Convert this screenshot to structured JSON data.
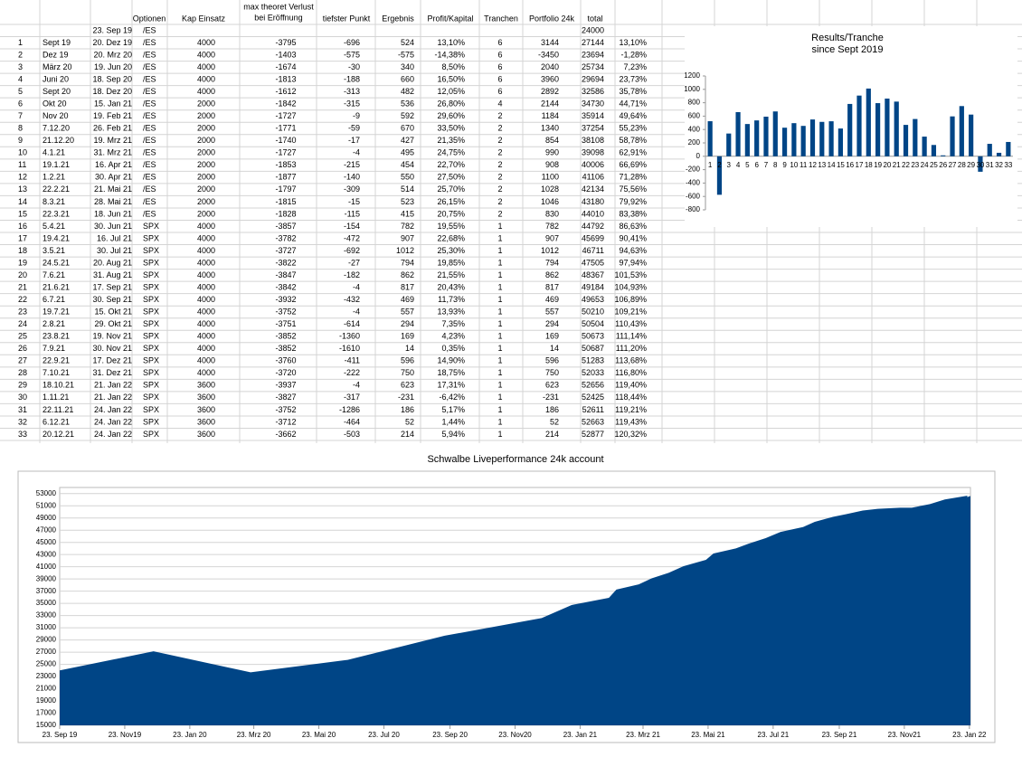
{
  "table": {
    "header": [
      "Optionen",
      "Kap Einsatz",
      [
        "max theoret Verlust",
        "bei Eröffnung"
      ],
      "tiefster Punkt",
      "Ergebnis",
      "Profit/Kapital",
      "Tranchen",
      "Portfolio 24k",
      "total"
    ],
    "start": {
      "end": "23. Sep 19",
      "option": "/ES",
      "total": "24000"
    },
    "rows": [
      [
        "1",
        "Sept 19",
        "20. Dez 19",
        "/ES",
        "4000",
        "-3795",
        "-696",
        "524",
        "13,10%",
        "6",
        "3144",
        "27144",
        "13,10%"
      ],
      [
        "2",
        "Dez 19",
        "20. Mrz 20",
        "/ES",
        "4000",
        "-1403",
        "-575",
        "-575",
        "-14,38%",
        "6",
        "-3450",
        "23694",
        "-1,28%"
      ],
      [
        "3",
        "März 20",
        "19. Jun 20",
        "/ES",
        "4000",
        "-1674",
        "-30",
        "340",
        "8,50%",
        "6",
        "2040",
        "25734",
        "7,23%"
      ],
      [
        "4",
        "Juni 20",
        "18. Sep 20",
        "/ES",
        "4000",
        "-1813",
        "-188",
        "660",
        "16,50%",
        "6",
        "3960",
        "29694",
        "23,73%"
      ],
      [
        "5",
        "Sept 20",
        "18. Dez 20",
        "/ES",
        "4000",
        "-1612",
        "-313",
        "482",
        "12,05%",
        "6",
        "2892",
        "32586",
        "35,78%"
      ],
      [
        "6",
        "Okt 20",
        "15. Jan 21",
        "/ES",
        "2000",
        "-1842",
        "-315",
        "536",
        "26,80%",
        "4",
        "2144",
        "34730",
        "44,71%"
      ],
      [
        "7",
        "Nov 20",
        "19. Feb 21",
        "/ES",
        "2000",
        "-1727",
        "-9",
        "592",
        "29,60%",
        "2",
        "1184",
        "35914",
        "49,64%"
      ],
      [
        "8",
        "7.12.20",
        "26. Feb 21",
        "/ES",
        "2000",
        "-1771",
        "-59",
        "670",
        "33,50%",
        "2",
        "1340",
        "37254",
        "55,23%"
      ],
      [
        "9",
        "21.12.20",
        "19. Mrz 21",
        "/ES",
        "2000",
        "-1740",
        "-17",
        "427",
        "21,35%",
        "2",
        "854",
        "38108",
        "58,78%"
      ],
      [
        "10",
        "4.1.21",
        "31. Mrz 21",
        "/ES",
        "2000",
        "-1727",
        "-4",
        "495",
        "24,75%",
        "2",
        "990",
        "39098",
        "62,91%"
      ],
      [
        "11",
        "19.1.21",
        "16. Apr 21",
        "/ES",
        "2000",
        "-1853",
        "-215",
        "454",
        "22,70%",
        "2",
        "908",
        "40006",
        "66,69%"
      ],
      [
        "12",
        "1.2.21",
        "30. Apr 21",
        "/ES",
        "2000",
        "-1877",
        "-140",
        "550",
        "27,50%",
        "2",
        "1100",
        "41106",
        "71,28%"
      ],
      [
        "13",
        "22.2.21",
        "21. Mai 21",
        "/ES",
        "2000",
        "-1797",
        "-309",
        "514",
        "25,70%",
        "2",
        "1028",
        "42134",
        "75,56%"
      ],
      [
        "14",
        "8.3.21",
        "28. Mai 21",
        "/ES",
        "2000",
        "-1815",
        "-15",
        "523",
        "26,15%",
        "2",
        "1046",
        "43180",
        "79,92%"
      ],
      [
        "15",
        "22.3.21",
        "18. Jun 21",
        "/ES",
        "2000",
        "-1828",
        "-115",
        "415",
        "20,75%",
        "2",
        "830",
        "44010",
        "83,38%"
      ],
      [
        "16",
        "5.4.21",
        "30. Jun 21",
        "SPX",
        "4000",
        "-3857",
        "-154",
        "782",
        "19,55%",
        "1",
        "782",
        "44792",
        "86,63%"
      ],
      [
        "17",
        "19.4.21",
        "16. Jul 21",
        "SPX",
        "4000",
        "-3782",
        "-472",
        "907",
        "22,68%",
        "1",
        "907",
        "45699",
        "90,41%"
      ],
      [
        "18",
        "3.5.21",
        "30. Jul 21",
        "SPX",
        "4000",
        "-3727",
        "-692",
        "1012",
        "25,30%",
        "1",
        "1012",
        "46711",
        "94,63%"
      ],
      [
        "19",
        "24.5.21",
        "20. Aug 21",
        "SPX",
        "4000",
        "-3822",
        "-27",
        "794",
        "19,85%",
        "1",
        "794",
        "47505",
        "97,94%"
      ],
      [
        "20",
        "7.6.21",
        "31. Aug 21",
        "SPX",
        "4000",
        "-3847",
        "-182",
        "862",
        "21,55%",
        "1",
        "862",
        "48367",
        "101,53%"
      ],
      [
        "21",
        "21.6.21",
        "17. Sep 21",
        "SPX",
        "4000",
        "-3842",
        "-4",
        "817",
        "20,43%",
        "1",
        "817",
        "49184",
        "104,93%"
      ],
      [
        "22",
        "6.7.21",
        "30. Sep 21",
        "SPX",
        "4000",
        "-3932",
        "-432",
        "469",
        "11,73%",
        "1",
        "469",
        "49653",
        "106,89%"
      ],
      [
        "23",
        "19.7.21",
        "15. Okt 21",
        "SPX",
        "4000",
        "-3752",
        "-4",
        "557",
        "13,93%",
        "1",
        "557",
        "50210",
        "109,21%"
      ],
      [
        "24",
        "2.8.21",
        "29. Okt 21",
        "SPX",
        "4000",
        "-3751",
        "-614",
        "294",
        "7,35%",
        "1",
        "294",
        "50504",
        "110,43%"
      ],
      [
        "25",
        "23.8.21",
        "19. Nov 21",
        "SPX",
        "4000",
        "-3852",
        "-1360",
        "169",
        "4,23%",
        "1",
        "169",
        "50673",
        "111,14%"
      ],
      [
        "26",
        "7.9.21",
        "30. Nov 21",
        "SPX",
        "4000",
        "-3852",
        "-1610",
        "14",
        "0,35%",
        "1",
        "14",
        "50687",
        "111,20%"
      ],
      [
        "27",
        "22.9.21",
        "17. Dez 21",
        "SPX",
        "4000",
        "-3760",
        "-411",
        "596",
        "14,90%",
        "1",
        "596",
        "51283",
        "113,68%"
      ],
      [
        "28",
        "7.10.21",
        "31. Dez 21",
        "SPX",
        "4000",
        "-3720",
        "-222",
        "750",
        "18,75%",
        "1",
        "750",
        "52033",
        "116,80%"
      ],
      [
        "29",
        "18.10.21",
        "21. Jan 22",
        "SPX",
        "3600",
        "-3937",
        "-4",
        "623",
        "17,31%",
        "1",
        "623",
        "52656",
        "119,40%"
      ],
      [
        "30",
        "1.11.21",
        "21. Jan 22",
        "SPX",
        "3600",
        "-3827",
        "-317",
        "-231",
        "-6,42%",
        "1",
        "-231",
        "52425",
        "118,44%"
      ],
      [
        "31",
        "22.11.21",
        "24. Jan 22",
        "SPX",
        "3600",
        "-3752",
        "-1286",
        "186",
        "5,17%",
        "1",
        "186",
        "52611",
        "119,21%"
      ],
      [
        "32",
        "6.12.21",
        "24. Jan 22",
        "SPX",
        "3600",
        "-3712",
        "-464",
        "52",
        "1,44%",
        "1",
        "52",
        "52663",
        "119,43%"
      ],
      [
        "33",
        "20.12.21",
        "24. Jan 22",
        "SPX",
        "3600",
        "-3662",
        "-503",
        "214",
        "5,94%",
        "1",
        "214",
        "52877",
        "120,32%"
      ]
    ]
  },
  "chart_data": [
    {
      "type": "bar",
      "title": [
        "Results/Tranche",
        "since Sept 2019"
      ],
      "color": "#004586",
      "categories": [
        1,
        2,
        3,
        4,
        5,
        6,
        7,
        8,
        9,
        10,
        11,
        12,
        13,
        14,
        15,
        16,
        17,
        18,
        19,
        20,
        21,
        22,
        23,
        24,
        25,
        26,
        27,
        28,
        29,
        30,
        31,
        32,
        33
      ],
      "values": [
        524,
        -575,
        340,
        660,
        482,
        536,
        592,
        670,
        427,
        495,
        454,
        550,
        514,
        523,
        415,
        782,
        907,
        1012,
        794,
        862,
        817,
        469,
        557,
        294,
        169,
        14,
        596,
        750,
        623,
        -231,
        186,
        52,
        214
      ],
      "ylim": [
        -800,
        1200
      ],
      "yticks": [
        -800,
        -600,
        -400,
        -200,
        0,
        200,
        400,
        600,
        800,
        1000,
        1200
      ],
      "grid": false
    },
    {
      "type": "area",
      "title": "Schwalbe Liveperformance 24k account",
      "color": "#004586",
      "grid": true,
      "x": [
        "2019-09-23",
        "2019-12-20",
        "2020-03-20",
        "2020-06-19",
        "2020-09-18",
        "2020-12-18",
        "2021-01-15",
        "2021-02-19",
        "2021-02-26",
        "2021-03-19",
        "2021-03-31",
        "2021-04-16",
        "2021-04-30",
        "2021-05-21",
        "2021-05-28",
        "2021-06-18",
        "2021-06-30",
        "2021-07-16",
        "2021-07-30",
        "2021-08-20",
        "2021-08-31",
        "2021-09-17",
        "2021-09-30",
        "2021-10-15",
        "2021-10-29",
        "2021-11-19",
        "2021-11-30",
        "2021-12-17",
        "2021-12-31",
        "2022-01-21",
        "2022-01-21",
        "2022-01-24",
        "2022-01-24",
        "2022-01-24"
      ],
      "values": [
        24000,
        27144,
        23694,
        25734,
        29694,
        32586,
        34730,
        35914,
        37254,
        38108,
        39098,
        40006,
        41106,
        42134,
        43180,
        44010,
        44792,
        45699,
        46711,
        47505,
        48367,
        49184,
        49653,
        50210,
        50504,
        50673,
        50687,
        51283,
        52033,
        52656,
        52425,
        52611,
        52663,
        52877
      ],
      "xlim": [
        "2019-09-23",
        "2022-01-24"
      ],
      "xticks": [
        {
          "value": "2019-09-23",
          "label": "23. Sep 19"
        },
        {
          "value": "2019-11-23",
          "label": "23. Nov19"
        },
        {
          "value": "2020-01-23",
          "label": "23. Jan 20"
        },
        {
          "value": "2020-03-23",
          "label": "23. Mrz 20"
        },
        {
          "value": "2020-05-23",
          "label": "23. Mai 20"
        },
        {
          "value": "2020-07-23",
          "label": "23. Jul 20"
        },
        {
          "value": "2020-09-23",
          "label": "23. Sep 20"
        },
        {
          "value": "2020-11-23",
          "label": "23. Nov20"
        },
        {
          "value": "2021-01-23",
          "label": "23. Jan 21"
        },
        {
          "value": "2021-03-23",
          "label": "23. Mrz 21"
        },
        {
          "value": "2021-05-23",
          "label": "23. Mai 21"
        },
        {
          "value": "2021-07-23",
          "label": "23. Jul 21"
        },
        {
          "value": "2021-09-23",
          "label": "23. Sep 21"
        },
        {
          "value": "2021-11-23",
          "label": "23. Nov21"
        },
        {
          "value": "2022-01-23",
          "label": "23. Jan 22"
        }
      ],
      "ylim": [
        15000,
        54000
      ],
      "yticks": [
        15000,
        17000,
        19000,
        21000,
        23000,
        25000,
        27000,
        29000,
        31000,
        33000,
        35000,
        37000,
        39000,
        41000,
        43000,
        45000,
        47000,
        49000,
        51000,
        53000
      ]
    }
  ]
}
